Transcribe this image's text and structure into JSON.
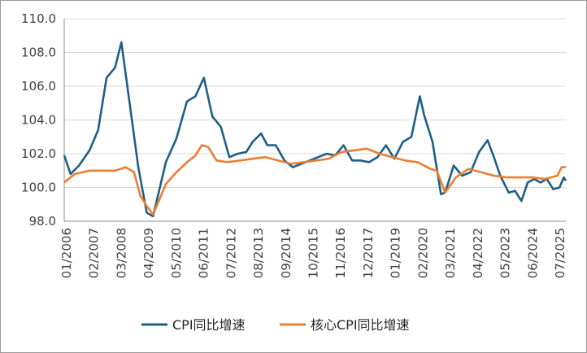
{
  "chart_data": {
    "type": "line",
    "ylim": [
      98.0,
      110.0
    ],
    "y_ticks": [
      "110.0",
      "108.0",
      "106.0",
      "104.0",
      "102.0",
      "100.0",
      "98.0"
    ],
    "y_tick_values": [
      110,
      108,
      106,
      104,
      102,
      100,
      98
    ],
    "x_ticks": [
      "01/2006",
      "02/2007",
      "03/2008",
      "04/2009",
      "05/2010",
      "06/2011",
      "07/2012",
      "08/2013",
      "09/2014",
      "10/2015",
      "11/2016",
      "12/2017",
      "01/2019",
      "02/2020",
      "03/2021",
      "04/2022",
      "05/2023",
      "06/2024",
      "07/2025"
    ],
    "x_start": "2006-01",
    "x_end": "2025-10",
    "grid": true,
    "legend_position": "bottom",
    "series": [
      {
        "name": "CPI同比增速",
        "color": "#1f5f86",
        "x": [
          "2006-01",
          "2006-04",
          "2006-08",
          "2007-01",
          "2007-05",
          "2007-09",
          "2008-01",
          "2008-04",
          "2008-08",
          "2008-12",
          "2009-04",
          "2009-07",
          "2010-01",
          "2010-06",
          "2010-11",
          "2011-03",
          "2011-07",
          "2011-11",
          "2012-03",
          "2012-07",
          "2012-11",
          "2013-03",
          "2013-06",
          "2013-10",
          "2014-01",
          "2014-05",
          "2014-09",
          "2015-01",
          "2015-05",
          "2015-09",
          "2016-01",
          "2016-05",
          "2016-09",
          "2017-01",
          "2017-05",
          "2017-09",
          "2018-01",
          "2018-05",
          "2018-09",
          "2019-01",
          "2019-05",
          "2019-09",
          "2020-01",
          "2020-03",
          "2020-07",
          "2020-11",
          "2021-01",
          "2021-05",
          "2021-09",
          "2022-01",
          "2022-05",
          "2022-09",
          "2022-12",
          "2023-03",
          "2023-07",
          "2023-10",
          "2024-01",
          "2024-04",
          "2024-07",
          "2024-10",
          "2025-01",
          "2025-04",
          "2025-07",
          "2025-09",
          "2025-10"
        ],
        "values": [
          101.9,
          100.8,
          101.3,
          102.2,
          103.4,
          106.5,
          107.1,
          108.6,
          104.9,
          101.2,
          98.5,
          98.3,
          101.5,
          102.9,
          105.1,
          105.4,
          106.5,
          104.2,
          103.6,
          101.8,
          102.0,
          102.1,
          102.7,
          103.2,
          102.5,
          102.5,
          101.6,
          101.2,
          101.4,
          101.6,
          101.8,
          102.0,
          101.9,
          102.5,
          101.6,
          101.6,
          101.5,
          101.8,
          102.5,
          101.7,
          102.7,
          103.0,
          105.4,
          104.3,
          102.7,
          99.6,
          99.7,
          101.3,
          100.7,
          100.9,
          102.1,
          102.8,
          101.8,
          100.7,
          99.7,
          99.8,
          99.2,
          100.3,
          100.5,
          100.3,
          100.5,
          99.9,
          100.0,
          100.6,
          100.4
        ]
      },
      {
        "name": "核心CPI同比增速",
        "color": "#ed7d31",
        "x": [
          "2006-01",
          "2006-06",
          "2007-01",
          "2007-06",
          "2008-01",
          "2008-06",
          "2008-10",
          "2009-01",
          "2009-04",
          "2009-07",
          "2009-10",
          "2010-01",
          "2010-06",
          "2010-11",
          "2011-03",
          "2011-06",
          "2011-09",
          "2012-01",
          "2012-06",
          "2012-12",
          "2013-06",
          "2013-12",
          "2014-06",
          "2014-12",
          "2015-06",
          "2015-12",
          "2016-06",
          "2016-12",
          "2017-06",
          "2017-12",
          "2018-06",
          "2018-12",
          "2019-06",
          "2019-12",
          "2020-06",
          "2020-09",
          "2021-01",
          "2021-06",
          "2021-12",
          "2022-06",
          "2022-12",
          "2023-06",
          "2023-12",
          "2024-06",
          "2024-12",
          "2025-06",
          "2025-08",
          "2025-10"
        ],
        "values": [
          100.3,
          100.8,
          101.0,
          101.0,
          101.0,
          101.2,
          100.9,
          99.5,
          98.9,
          98.4,
          99.3,
          100.2,
          100.9,
          101.5,
          101.9,
          102.5,
          102.4,
          101.6,
          101.5,
          101.6,
          101.7,
          101.8,
          101.6,
          101.4,
          101.5,
          101.6,
          101.7,
          102.1,
          102.2,
          102.3,
          102.0,
          101.8,
          101.6,
          101.5,
          101.1,
          101.0,
          99.7,
          100.6,
          101.1,
          100.9,
          100.7,
          100.6,
          100.6,
          100.6,
          100.5,
          100.7,
          101.2,
          101.2
        ]
      }
    ]
  }
}
